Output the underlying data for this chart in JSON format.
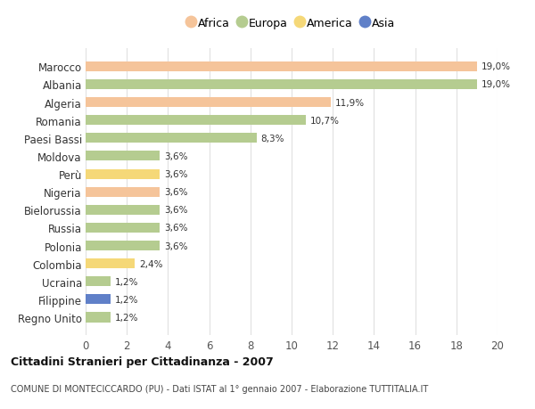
{
  "countries": [
    "Marocco",
    "Albania",
    "Algeria",
    "Romania",
    "Paesi Bassi",
    "Moldova",
    "Perù",
    "Nigeria",
    "Bielorussia",
    "Russia",
    "Polonia",
    "Colombia",
    "Ucraina",
    "Filippine",
    "Regno Unito"
  ],
  "values": [
    19.0,
    19.0,
    11.9,
    10.7,
    8.3,
    3.6,
    3.6,
    3.6,
    3.6,
    3.6,
    3.6,
    2.4,
    1.2,
    1.2,
    1.2
  ],
  "labels": [
    "19,0%",
    "19,0%",
    "11,9%",
    "10,7%",
    "8,3%",
    "3,6%",
    "3,6%",
    "3,6%",
    "3,6%",
    "3,6%",
    "3,6%",
    "2,4%",
    "1,2%",
    "1,2%",
    "1,2%"
  ],
  "colors": [
    "#f5c49a",
    "#b5cc90",
    "#f5c49a",
    "#b5cc90",
    "#b5cc90",
    "#b5cc90",
    "#f5d878",
    "#f5c49a",
    "#b5cc90",
    "#b5cc90",
    "#b5cc90",
    "#f5d878",
    "#b5cc90",
    "#6080c8",
    "#b5cc90"
  ],
  "continent_colors": {
    "Africa": "#f5c49a",
    "Europa": "#b5cc90",
    "America": "#f5d878",
    "Asia": "#6080c8"
  },
  "legend_labels": [
    "Africa",
    "Europa",
    "America",
    "Asia"
  ],
  "title": "Cittadini Stranieri per Cittadinanza - 2007",
  "subtitle": "COMUNE DI MONTECICCARDO (PU) - Dati ISTAT al 1° gennaio 2007 - Elaborazione TUTTITALIA.IT",
  "xlim": [
    0,
    20
  ],
  "xticks": [
    0,
    2,
    4,
    6,
    8,
    10,
    12,
    14,
    16,
    18,
    20
  ],
  "bg_color": "#ffffff",
  "grid_color": "#e0e0e0"
}
